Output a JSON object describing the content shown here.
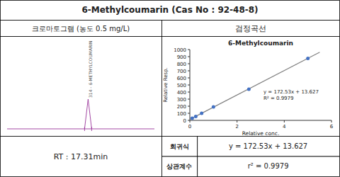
{
  "page": {
    "title": "6-Methylcoumarin (Cas No : 92-48-8)",
    "left_header": "크로마토그램 (농도 0.5 mg/L)",
    "right_header": "검정곡선",
    "rt_label": "RT : 17.31min",
    "chromatogram_label": "314 - 6-METHYLCOUMARIN",
    "chromatogram_color": "#993399",
    "footer": [
      {
        "label": "회귀식",
        "value": "y = 172.53x + 13.627"
      },
      {
        "label": "상관계수",
        "value": "r² = 0.9979"
      }
    ]
  },
  "chart_data": {
    "type": "scatter",
    "title": "6-Methylcoumarin",
    "x_label": "Relative conc.",
    "y_label": "Relative Resp.",
    "series": [
      {
        "type": "line",
        "color": "#808080",
        "x": [
          0,
          5.5
        ],
        "values": [
          13.627,
          962.5
        ]
      },
      {
        "type": "scatter",
        "color": "#4472C4",
        "x": [
          0.1,
          0.25,
          0.5,
          1.0,
          2.5,
          5.0
        ],
        "values": [
          30,
          55,
          100,
          190,
          440,
          875
        ]
      }
    ],
    "annotations": [
      "y = 172.53x + 13.627",
      "R² = 0.9979"
    ],
    "xlim": [
      0,
      6
    ],
    "ylim": [
      0,
      1000
    ],
    "xticks": [
      0,
      2,
      4,
      6
    ],
    "yticks": [
      0,
      100,
      200,
      300,
      400,
      500,
      600,
      700,
      800,
      900,
      1000
    ],
    "grid": false
  }
}
